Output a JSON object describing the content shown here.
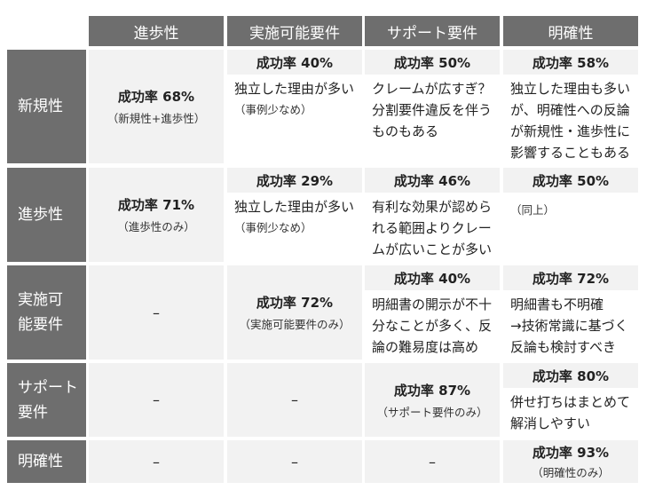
{
  "columns": [
    "進歩性",
    "実施可能要件",
    "サポート要件",
    "明確性"
  ],
  "rows": [
    "新規性",
    "進歩性",
    "実施可能要件",
    "サポート要件",
    "明確性"
  ],
  "dash": "–",
  "cells": {
    "nov_nov": {
      "rate": "成功率 68%",
      "note": "（新規性+進歩性）"
    },
    "nov_enab": {
      "rate": "成功率 40%",
      "lines": [
        "独立した理由が多い"
      ],
      "note": "（事例少なめ）"
    },
    "nov_supp": {
      "rate": "成功率 50%",
      "lines": [
        "クレームが広すぎ？",
        "分割要件違反を伴う",
        "ものもある"
      ]
    },
    "nov_clar": {
      "rate": "成功率 58%",
      "lines": [
        "独立した理由も多い",
        "が、明確性への反論",
        "が新規性・進歩性に",
        "影響することもある"
      ]
    },
    "inv_inv": {
      "rate": "成功率 71%",
      "note": "（進歩性のみ）"
    },
    "inv_enab": {
      "rate": "成功率 29%",
      "lines": [
        "独立した理由が多い"
      ],
      "note": "（事例少なめ）"
    },
    "inv_supp": {
      "rate": "成功率 46%",
      "lines": [
        "有利な効果が認めら",
        "れる範囲よりクレー",
        "ムが広いことが多い"
      ]
    },
    "inv_clar": {
      "rate": "成功率 50%",
      "note": "（同上）"
    },
    "enab_enab": {
      "rate": "成功率 72%",
      "note": "（実施可能要件のみ）"
    },
    "enab_supp": {
      "rate": "成功率 40%",
      "lines": [
        "明細書の開示が不十",
        "分なことが多く、反",
        "論の難易度は高め"
      ]
    },
    "enab_clar": {
      "rate": "成功率 72%",
      "lines": [
        "明細書も不明確",
        "→技術常識に基づく",
        "反論も検討すべき"
      ]
    },
    "supp_supp": {
      "rate": "成功率 87%",
      "note": "（サポート要件のみ）"
    },
    "supp_clar": {
      "rate": "成功率 80%",
      "lines": [
        "併せ打ちはまとめて",
        "解消しやすい"
      ]
    },
    "clar_clar": {
      "rate": "成功率 93%",
      "note": "（明確性のみ）"
    }
  }
}
